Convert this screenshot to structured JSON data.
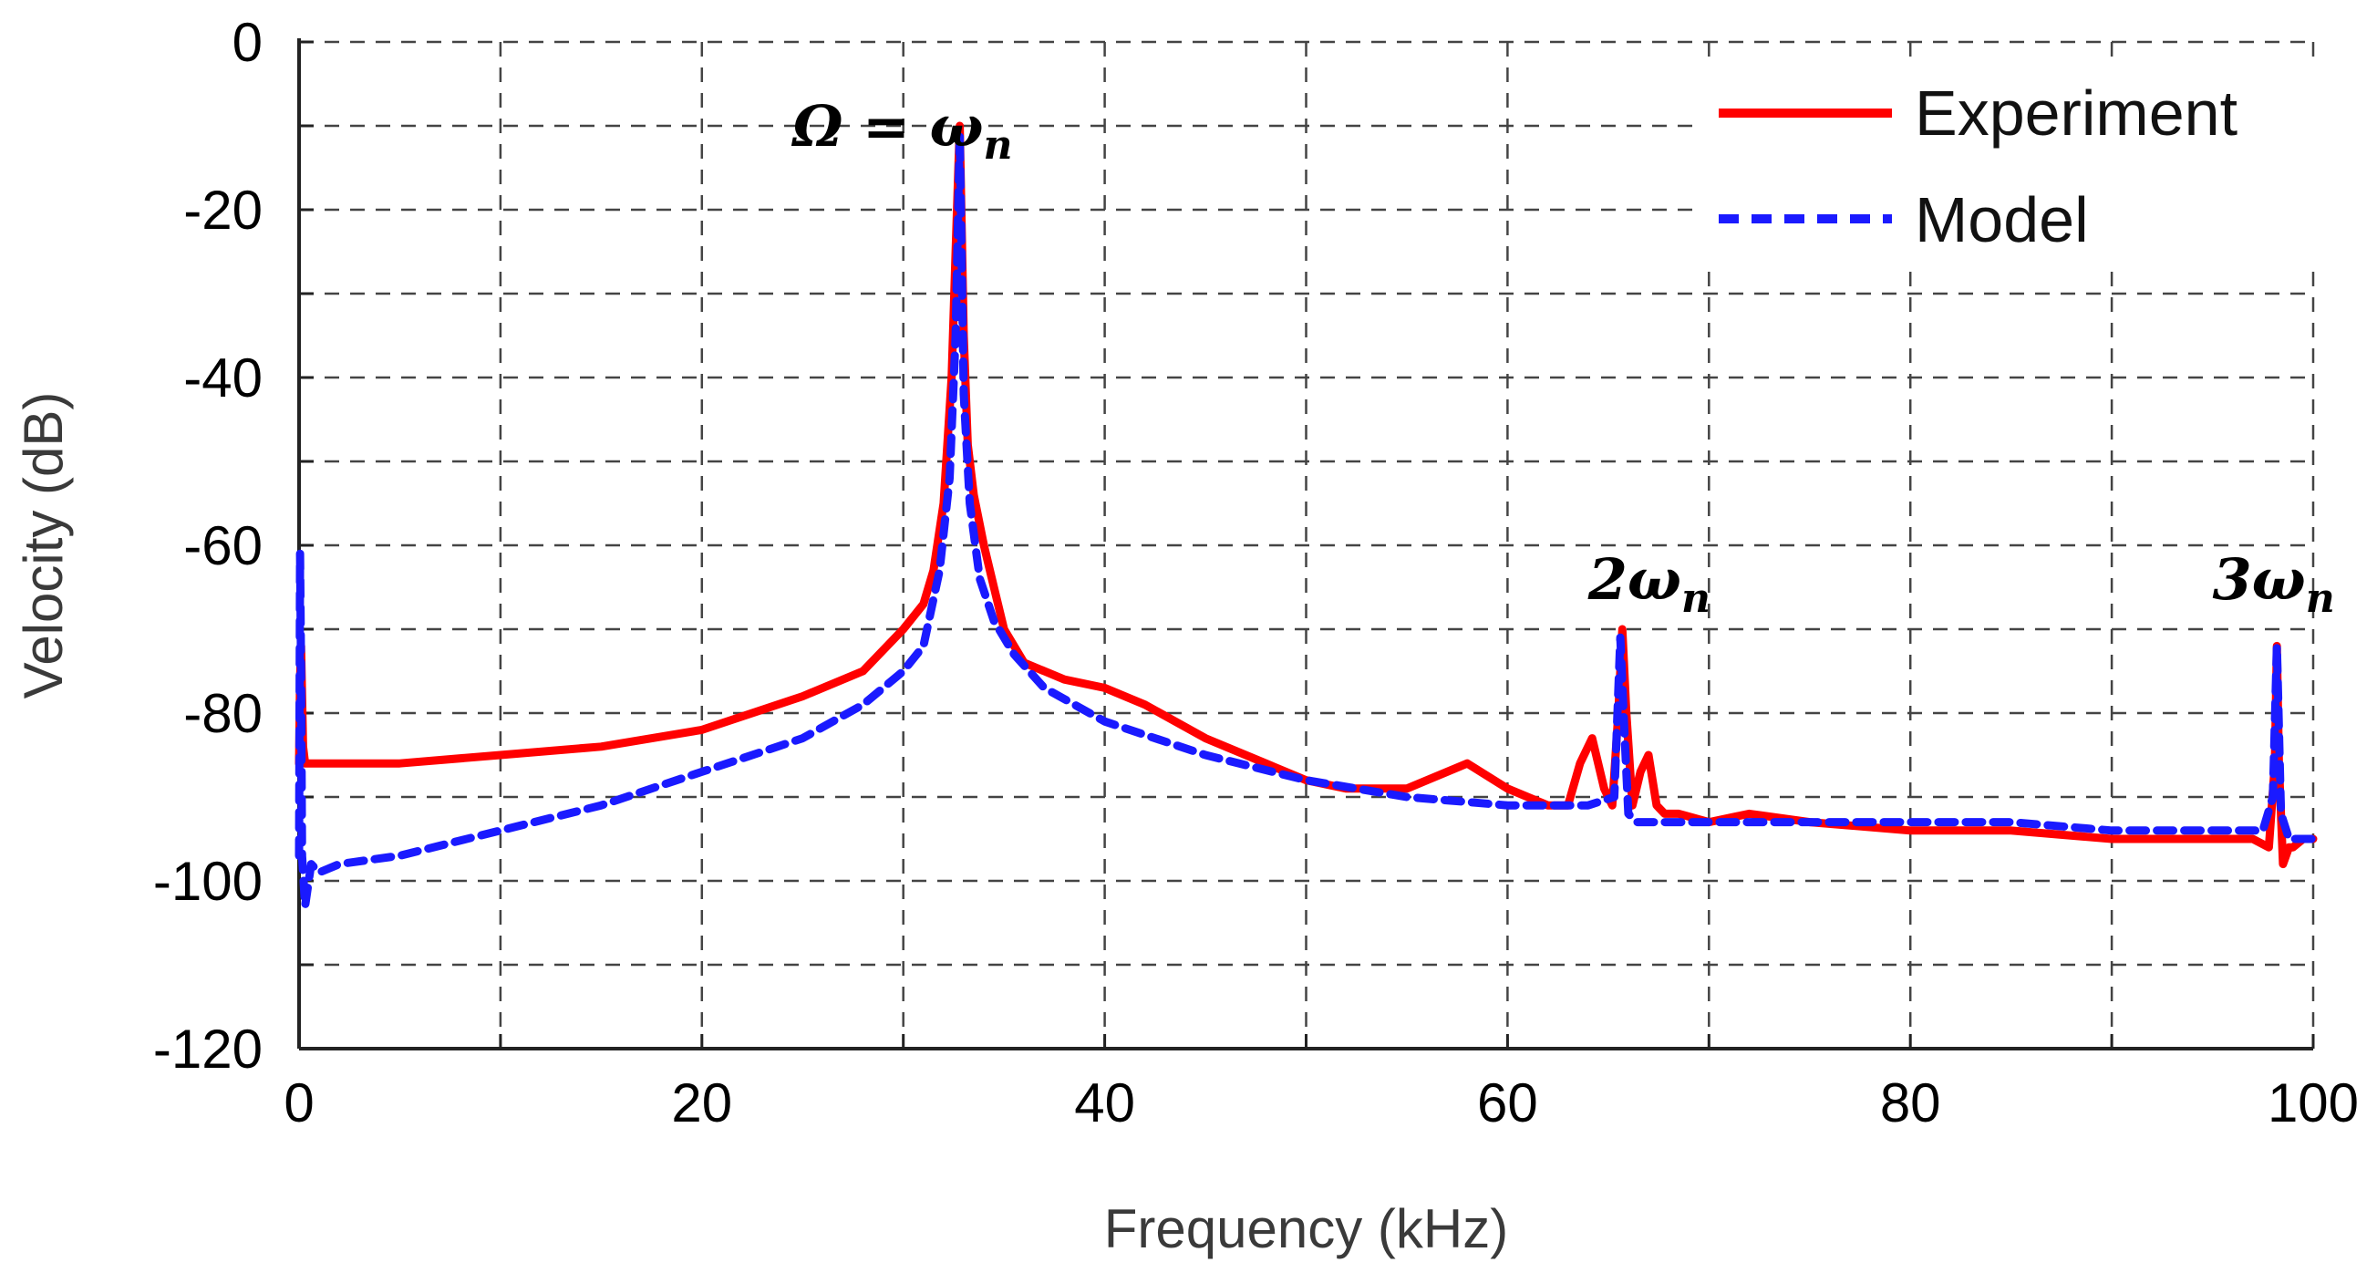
{
  "chart_data": {
    "type": "line",
    "title": "",
    "xlabel": "Frequency (kHz)",
    "ylabel": "Velocity (dB)",
    "xlim": [
      0,
      100
    ],
    "ylim": [
      -120,
      0
    ],
    "xticks": [
      0,
      20,
      40,
      60,
      80,
      100
    ],
    "xtick_labels": [
      "0",
      "20",
      "40",
      "60",
      "80",
      "100"
    ],
    "yticks": [
      0,
      -20,
      -40,
      -60,
      -80,
      -100,
      -120
    ],
    "ytick_labels": [
      "0",
      "-20",
      "-40",
      "-60",
      "-80",
      "-100",
      "-120"
    ],
    "grid": true,
    "legend_position": "top-right",
    "annotations": [
      {
        "id": "fundamental",
        "main": "Ω = ω",
        "sub": "n",
        "x": 24.5,
        "y": -10
      },
      {
        "id": "second",
        "main": "2ω",
        "sub": "n",
        "x": 64,
        "y": -64
      },
      {
        "id": "third",
        "main": "3ω",
        "sub": "n",
        "x": 95,
        "y": -64
      }
    ],
    "series": [
      {
        "name": "Experiment",
        "color": "#ff0000",
        "style": "solid",
        "x": [
          0,
          0.05,
          0.1,
          0.2,
          0.3,
          0.5,
          1,
          2,
          5,
          10,
          15,
          20,
          25,
          28,
          30,
          31,
          31.5,
          32,
          32.4,
          32.6,
          32.8,
          33,
          33.2,
          33.5,
          34,
          34.5,
          35,
          36,
          38,
          40,
          42,
          45,
          48,
          50,
          52,
          55,
          58,
          60,
          62,
          63,
          63.6,
          64.2,
          64.8,
          65.2,
          65.5,
          65.7,
          65.9,
          66.2,
          66.6,
          67,
          67.4,
          67.8,
          68.5,
          70,
          72,
          75,
          80,
          85,
          90,
          95,
          97,
          97.8,
          98.1,
          98.2,
          98.3,
          98.5,
          98.8,
          99,
          99.5,
          100
        ],
        "y": [
          -86,
          -76,
          -72,
          -84,
          -86,
          -86,
          -86,
          -86,
          -86,
          -85,
          -84,
          -82,
          -78,
          -75,
          -70,
          -67,
          -63,
          -55,
          -40,
          -25,
          -10,
          -35,
          -48,
          -54,
          -60,
          -65,
          -70,
          -74,
          -76,
          -77,
          -79,
          -83,
          -86,
          -88,
          -89,
          -89,
          -86,
          -89,
          -91,
          -91,
          -86,
          -83,
          -89,
          -91,
          -80,
          -70,
          -80,
          -91,
          -87,
          -85,
          -91,
          -92,
          -92,
          -93,
          -92,
          -93,
          -94,
          -94,
          -95,
          -95,
          -95,
          -96,
          -86,
          -72,
          -86,
          -98,
          -96,
          -96,
          -95,
          -95
        ]
      },
      {
        "name": "Model",
        "color": "#1a1aff",
        "style": "dashed",
        "x": [
          0,
          0.05,
          0.1,
          0.15,
          0.3,
          0.6,
          1,
          2,
          5,
          10,
          15,
          20,
          25,
          28,
          30,
          31,
          31.8,
          32.3,
          32.6,
          32.8,
          33,
          33.3,
          33.8,
          34.5,
          35.5,
          37,
          40,
          45,
          50,
          55,
          60,
          64,
          65.3,
          65.6,
          65.8,
          66,
          66.4,
          68,
          70,
          75,
          80,
          85,
          90,
          95,
          97.5,
          98,
          98.2,
          98.4,
          98.8,
          100
        ],
        "y": [
          -97,
          -61,
          -75,
          -97,
          -103,
          -98,
          -99,
          -98,
          -97,
          -94,
          -91,
          -87,
          -83,
          -79,
          -75,
          -72,
          -63,
          -52,
          -35,
          -11,
          -42,
          -55,
          -64,
          -69,
          -73,
          -77,
          -81,
          -85,
          -88,
          -90,
          -91,
          -91,
          -90,
          -71,
          -82,
          -92,
          -93,
          -93,
          -93,
          -93,
          -93,
          -93,
          -94,
          -94,
          -94,
          -90,
          -72,
          -92,
          -95,
          -95
        ]
      }
    ]
  }
}
